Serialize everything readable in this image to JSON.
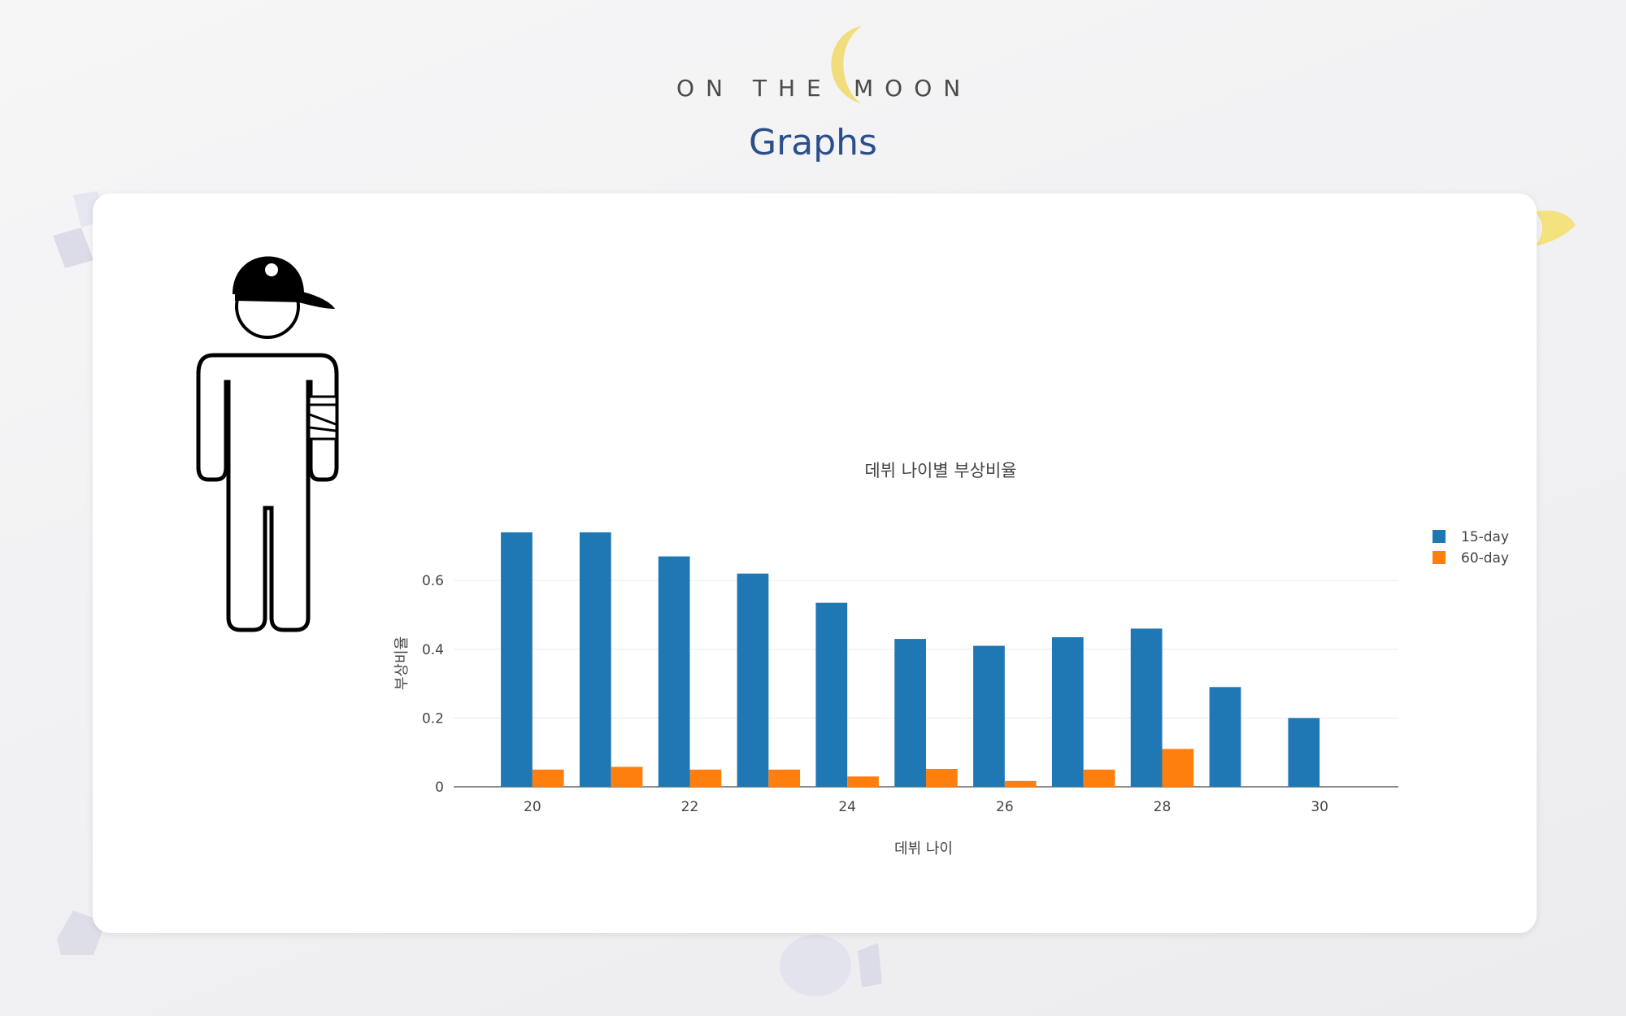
{
  "logo": {
    "left_word": "ON THE",
    "right_word": "MOON"
  },
  "page_title": "Graphs",
  "chart_data": {
    "type": "bar",
    "title": "데뷔 나이별 부상비율",
    "xlabel": "데뷔 나이",
    "ylabel": "부상비율",
    "x": [
      20,
      21,
      22,
      23,
      24,
      25,
      26,
      27,
      28,
      29,
      30
    ],
    "x_ticks": [
      20,
      22,
      24,
      26,
      28,
      30
    ],
    "y_ticks": [
      0,
      0.2,
      0.4,
      0.6
    ],
    "ylim": [
      0,
      0.78
    ],
    "grid": true,
    "legend_position": "right",
    "series": [
      {
        "name": "15-day",
        "color": "#1f77b4",
        "values": [
          0.74,
          0.74,
          0.67,
          0.62,
          0.535,
          0.43,
          0.41,
          0.435,
          0.46,
          0.29,
          0.2
        ]
      },
      {
        "name": "60-day",
        "color": "#ff7f0e",
        "values": [
          0.05,
          0.058,
          0.05,
          0.05,
          0.03,
          0.052,
          0.017,
          0.05,
          0.11,
          0,
          0
        ]
      }
    ]
  }
}
